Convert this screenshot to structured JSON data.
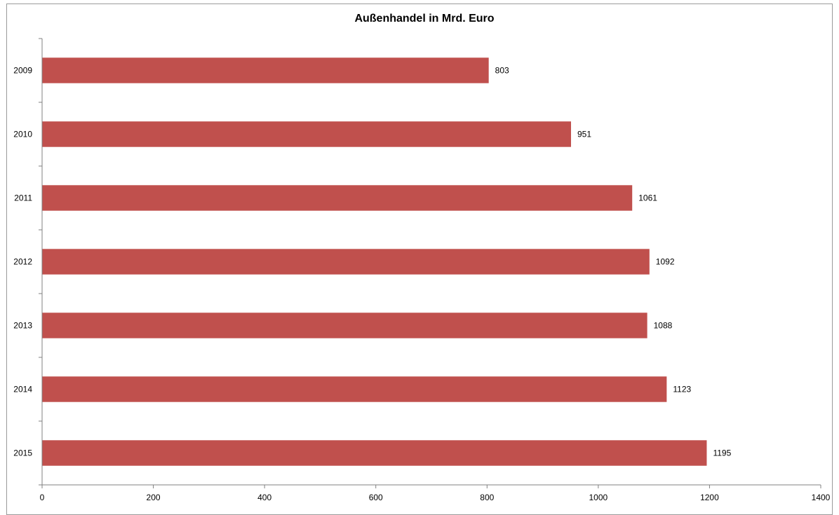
{
  "chart_data": {
    "type": "bar",
    "orientation": "horizontal",
    "title": "Außenhandel in Mrd. Euro",
    "xlabel": "",
    "ylabel": "",
    "categories": [
      "2009",
      "2010",
      "2011",
      "2012",
      "2013",
      "2014",
      "2015"
    ],
    "values": [
      803,
      951,
      1061,
      1092,
      1088,
      1123,
      1195
    ],
    "xlim": [
      0,
      1400
    ],
    "x_ticks": [
      0,
      200,
      400,
      600,
      800,
      1000,
      1200,
      1400
    ],
    "grid": false,
    "legend": "none",
    "bar_color": "#c0504d",
    "data_labels": true
  }
}
